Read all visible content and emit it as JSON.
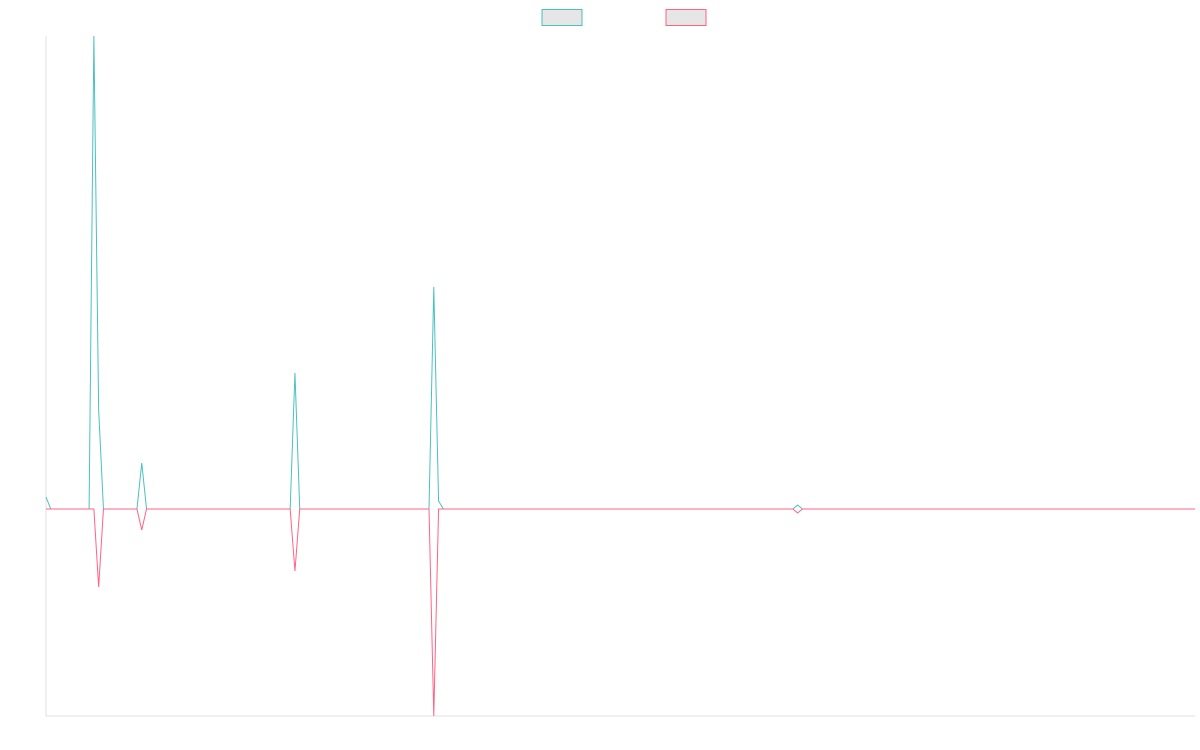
{
  "chart_data": {
    "type": "line",
    "x": [
      0,
      1,
      9,
      10,
      11,
      12,
      19,
      20,
      21,
      51,
      52,
      53,
      80,
      81,
      82,
      83,
      156,
      157,
      158,
      240
    ],
    "xlim": [
      0,
      240
    ],
    "ylim": [
      -207,
      473
    ],
    "series": [
      {
        "color": "#4bc0c0",
        "values": [
          12,
          0,
          0,
          473,
          99,
          0,
          0,
          46,
          0,
          0,
          136,
          0,
          0,
          222,
          8,
          0,
          0,
          4,
          0,
          0
        ]
      },
      {
        "color": "#ff6384",
        "values": [
          0,
          0,
          0,
          0,
          -78,
          0,
          0,
          -21,
          0,
          0,
          -62,
          0,
          0,
          -207,
          0,
          0,
          0,
          -4,
          0,
          0
        ]
      }
    ],
    "legend_position": "top",
    "legend_fill": "#e6e6e6",
    "axis_color": "#e0e0e0"
  }
}
